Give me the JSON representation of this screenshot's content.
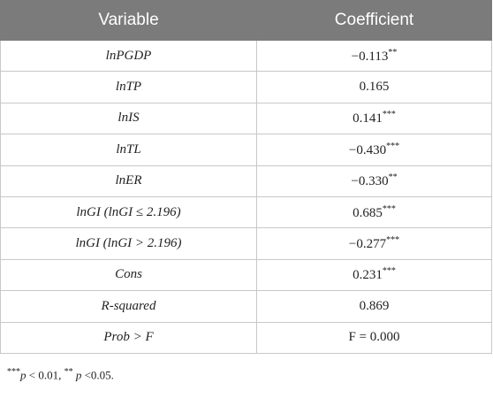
{
  "table": {
    "header": [
      "Variable",
      "Coefficient"
    ],
    "rows": [
      [
        {
          "text": "lnPGDP"
        },
        {
          "value": "−0.113",
          "sig": "**"
        }
      ],
      [
        {
          "text": "lnTP"
        },
        {
          "value": "0.165"
        }
      ],
      [
        {
          "text": "lnIS"
        },
        {
          "value": "0.141",
          "sig": "***"
        }
      ],
      [
        {
          "text": "lnTL"
        },
        {
          "value": "−0.430",
          "sig": "***"
        }
      ],
      [
        {
          "text": "lnER"
        },
        {
          "value": "−0.330",
          "sig": "**"
        }
      ],
      [
        {
          "text": "lnGI (lnGI ≤ 2.196)"
        },
        {
          "value": "0.685",
          "sig": "***"
        }
      ],
      [
        {
          "text": "lnGI (lnGI > 2.196)"
        },
        {
          "value": "−0.277",
          "sig": "***"
        }
      ],
      [
        {
          "text": "Cons"
        },
        {
          "value": "0.231",
          "sig": "***"
        }
      ],
      [
        {
          "text": "R-squared"
        },
        {
          "value": "0.869"
        }
      ],
      [
        {
          "text": "Prob > F"
        },
        {
          "value": "F = 0.000"
        }
      ]
    ]
  },
  "footnote": {
    "sig1": "***",
    "p1": "p",
    "text1": " < 0.01, ",
    "sig2": "**",
    "p2": " p",
    "text2": " <0.05."
  }
}
